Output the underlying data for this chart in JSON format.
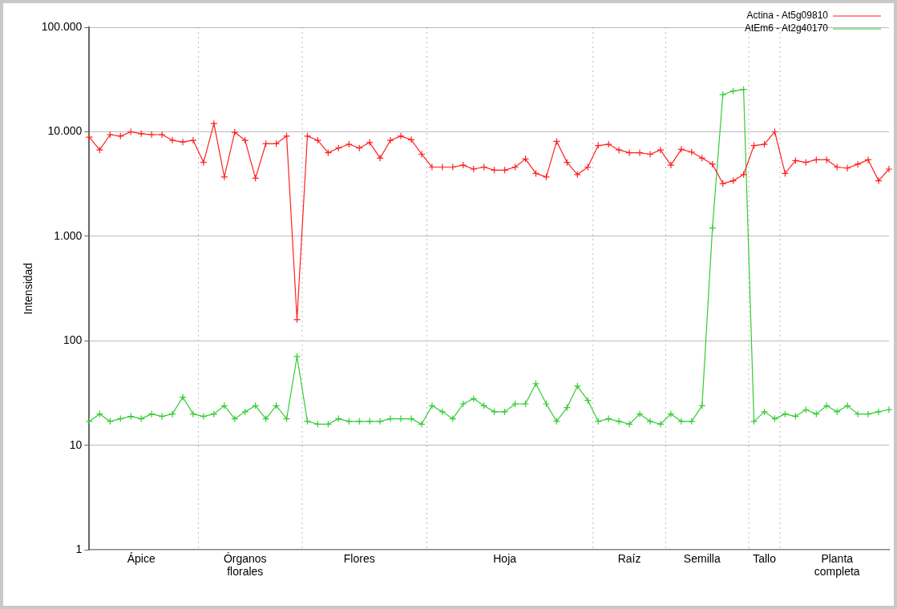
{
  "chart_data": {
    "type": "line",
    "ylabel": "Intensidad",
    "log": "y",
    "grid": "y",
    "legend": "top right",
    "marker": "cross",
    "line_style": "solid",
    "categories": [
      null,
      null,
      null,
      null,
      null,
      "Ápice",
      null,
      null,
      null,
      null,
      null,
      null,
      null,
      null,
      null,
      "Órganos florales",
      null,
      null,
      null,
      null,
      null,
      null,
      null,
      null,
      null,
      null,
      "Flores",
      null,
      null,
      null,
      null,
      null,
      null,
      null,
      null,
      null,
      null,
      null,
      null,
      null,
      "Hoja",
      null,
      null,
      null,
      null,
      null,
      null,
      null,
      null,
      null,
      null,
      null,
      "Raíz",
      null,
      null,
      null,
      null,
      null,
      null,
      "Semilla",
      null,
      null,
      null,
      null,
      null,
      "Tallo",
      null,
      null,
      null,
      null,
      null,
      null,
      "Planta completa",
      null,
      null,
      null,
      null,
      null
    ],
    "ylim": [
      1,
      100000
    ],
    "yticks": [
      1,
      10,
      100,
      {
        "value": 1000,
        "label": "1.000"
      },
      {
        "value": 10000,
        "label": "10.000"
      },
      {
        "value": 100000,
        "label": "100.000"
      }
    ],
    "series": [
      {
        "name": "Actina - At5g09810",
        "color": "#ff2020",
        "values": [
          8900,
          6700,
          9400,
          9100,
          10000,
          9600,
          9400,
          9400,
          8300,
          8000,
          8300,
          5100,
          12000,
          3700,
          9900,
          8300,
          3600,
          7700,
          7700,
          9100,
          160,
          9100,
          8300,
          6300,
          7000,
          7600,
          7000,
          7900,
          5600,
          8300,
          9100,
          8400,
          6100,
          4600,
          4600,
          4600,
          4800,
          4400,
          4600,
          4300,
          4300,
          4600,
          5500,
          4000,
          3700,
          8100,
          5100,
          3900,
          4600,
          7400,
          7600,
          6700,
          6300,
          6300,
          6100,
          6700,
          4800,
          6800,
          6400,
          5600,
          4900,
          3200,
          3400,
          3900,
          7400,
          7600,
          10000,
          4000,
          5300,
          5100,
          5400,
          5400,
          4600,
          4500,
          4900,
          5400,
          3400,
          4400
        ]
      },
      {
        "name": "AtEm6 - At2g40170",
        "color": "#33cc33",
        "values": [
          17,
          20,
          17,
          18,
          19,
          18,
          20,
          19,
          20,
          29,
          20,
          19,
          20,
          24,
          18,
          21,
          24,
          18,
          24,
          18,
          71,
          17,
          16,
          16,
          18,
          17,
          17,
          17,
          17,
          18,
          18,
          18,
          16,
          24,
          21,
          18,
          25,
          28,
          24,
          21,
          21,
          25,
          25,
          39,
          25,
          17,
          23,
          37,
          27,
          17,
          18,
          17,
          16,
          20,
          17,
          16,
          20,
          17,
          17,
          24,
          1200,
          22700,
          24500,
          25400,
          17,
          21,
          18,
          20,
          19,
          22,
          20,
          24,
          21,
          24,
          20,
          20,
          21,
          22
        ]
      }
    ]
  }
}
